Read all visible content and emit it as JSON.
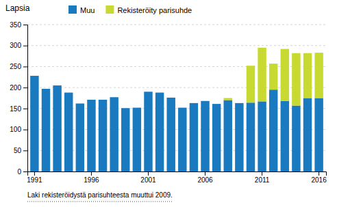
{
  "chart_data": {
    "type": "bar",
    "stacked": true,
    "title": "Lapsia",
    "annotations": [
      "Laki rekisteröidystä parisuhteesta muuttui 2009."
    ],
    "categories": [
      "1991",
      null,
      null,
      null,
      null,
      "1996",
      null,
      null,
      null,
      null,
      "2001",
      null,
      null,
      null,
      null,
      "2006",
      null,
      null,
      null,
      null,
      "2011",
      null,
      null,
      null,
      null,
      "2016"
    ],
    "series": [
      {
        "name": "Muu",
        "color": "#1a7abf",
        "values": [
          228,
          197,
          205,
          188,
          162,
          171,
          171,
          177,
          151,
          152,
          190,
          188,
          176,
          152,
          163,
          168,
          161,
          170,
          163,
          164,
          167,
          195,
          168,
          157,
          175,
          175
        ]
      },
      {
        "name": "Rekisteröity parisuhde",
        "color": "#c8d932",
        "values": [
          0,
          0,
          0,
          0,
          0,
          0,
          0,
          0,
          0,
          0,
          0,
          0,
          0,
          0,
          0,
          0,
          0,
          5,
          0,
          88,
          128,
          62,
          124,
          125,
          107,
          108
        ]
      }
    ],
    "ylim": [
      0,
      350
    ],
    "yticks": [
      0,
      50,
      100,
      150,
      200,
      250,
      300,
      350
    ],
    "grid": true,
    "legend": "top"
  }
}
